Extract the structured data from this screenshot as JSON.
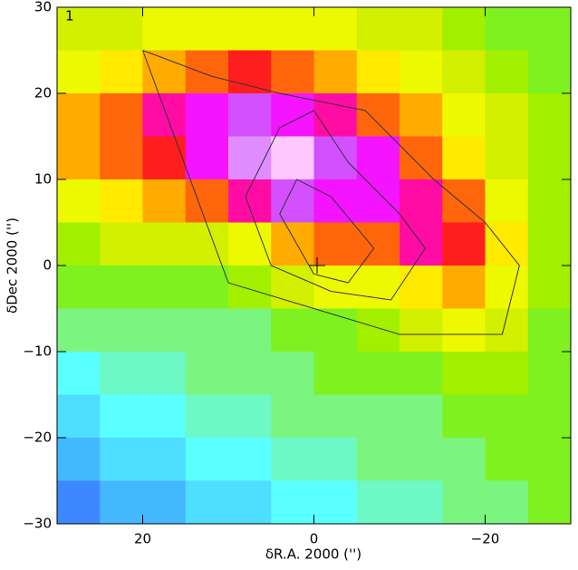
{
  "chart_data": {
    "type": "heatmap",
    "panel_label": "1",
    "x_label": "δR.A. 2000 ('')",
    "y_label": "δDec 2000 ('')",
    "xlim": [
      30,
      -30
    ],
    "ylim": [
      -30,
      30
    ],
    "xticks": [
      20,
      0,
      {
        "value": -20,
        "label": "−20"
      }
    ],
    "yticks": [
      {
        "value": -30,
        "label": "−30"
      },
      {
        "value": -20,
        "label": "−20"
      },
      {
        "value": -10,
        "label": "−10"
      },
      0,
      10,
      20,
      30
    ],
    "zlim": [
      0,
      10
    ],
    "colors": [
      "#1e3cff",
      "#3c78ff",
      "#46c8ff",
      "#5affff",
      "#7af5a0",
      "#82f000",
      "#d2f000",
      "#ffff00",
      "#ff9600",
      "#ff1e1e",
      "#ff00ff",
      "#c864ff",
      "#ffc8ff"
    ],
    "z": [
      [
        5,
        5,
        5.5,
        5.5,
        5.5,
        5.5,
        5.5,
        5,
        5,
        4.5,
        4,
        4
      ],
      [
        5.5,
        6,
        6.5,
        7,
        7.5,
        7,
        6.5,
        6,
        5.5,
        5,
        4.5,
        4
      ],
      [
        6.5,
        7,
        8,
        8.5,
        9,
        8.5,
        8,
        7,
        6.5,
        5.5,
        5,
        4.5
      ],
      [
        6.5,
        7,
        7.5,
        8.5,
        9.5,
        10,
        9,
        8.5,
        7,
        6,
        5,
        4.5
      ],
      [
        5.5,
        6,
        6.5,
        7,
        8,
        9,
        8.5,
        8.5,
        8,
        7,
        5.5,
        4.5
      ],
      [
        4.5,
        5,
        5,
        5,
        5.5,
        6.5,
        7,
        7,
        8,
        7.5,
        6,
        4.5
      ],
      [
        4,
        4,
        4,
        4,
        4.5,
        5,
        5.5,
        5.5,
        6,
        6.5,
        5.5,
        4.5
      ],
      [
        3.5,
        3.5,
        3.5,
        3.5,
        3.5,
        4,
        4,
        4.5,
        5,
        5.5,
        5,
        4
      ],
      [
        2.5,
        3,
        3,
        3.5,
        3.5,
        3.5,
        4,
        4,
        4,
        4.5,
        4.5,
        4
      ],
      [
        2,
        2.5,
        2.5,
        3,
        3,
        3.5,
        3.5,
        3.5,
        3.5,
        4,
        4,
        4
      ],
      [
        1.5,
        2,
        2,
        2.5,
        2.5,
        3,
        3,
        3.5,
        3.5,
        3.5,
        4,
        4
      ],
      [
        1,
        1.5,
        1.5,
        2,
        2,
        2.5,
        2.5,
        3,
        3,
        3.5,
        3.5,
        4
      ]
    ],
    "contours": [
      {
        "x": [
          4,
          2,
          -2,
          -7,
          -4,
          0,
          4
        ],
        "y": [
          6,
          10,
          8,
          2,
          -2,
          -1,
          6
        ]
      },
      {
        "x": [
          8,
          4,
          0,
          -4,
          -10,
          -13,
          -9,
          -2,
          5,
          8
        ],
        "y": [
          8,
          16,
          18,
          12,
          6,
          2,
          -4,
          -3,
          0,
          8
        ]
      },
      {
        "x": [
          20,
          12,
          4,
          -6,
          -14,
          -20,
          -24,
          -22,
          -10,
          0,
          10,
          20
        ],
        "y": [
          25,
          22,
          20,
          18,
          10,
          5,
          0,
          -8,
          -8,
          -5,
          -2,
          25
        ]
      }
    ]
  }
}
